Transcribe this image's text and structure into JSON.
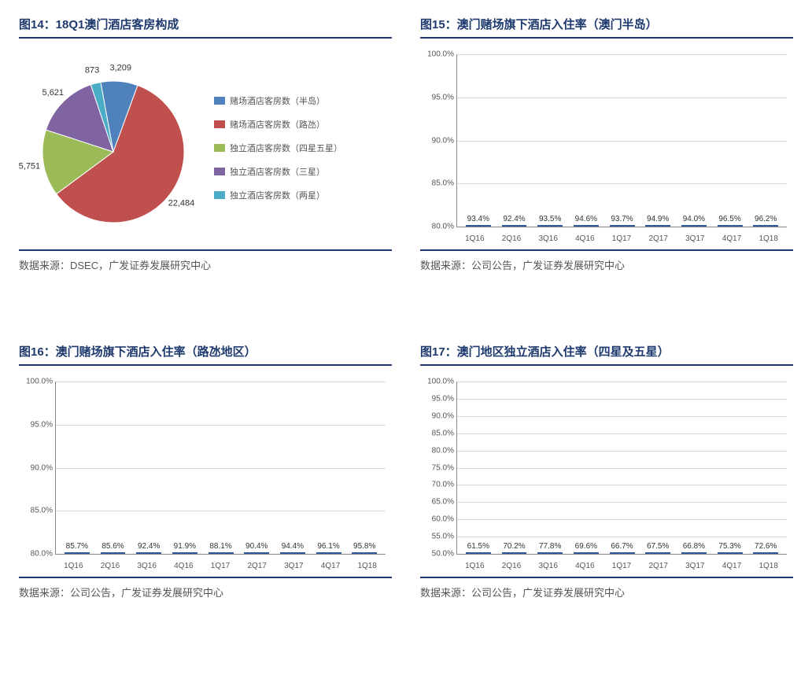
{
  "panels": [
    {
      "title": "图14：18Q1澳门酒店客房构成",
      "source": "数据来源：DSEC，广发证券发展研究中心",
      "chart": {
        "type": "pie",
        "slices": [
          {
            "label": "赌场酒店客房数（半岛）",
            "value": 3209,
            "color": "#4f81bd",
            "text": "3,209"
          },
          {
            "label": "赌场酒店客房数（路氹）",
            "value": 22484,
            "color": "#c0504d",
            "text": "22,484"
          },
          {
            "label": "独立酒店客房数（四星五星）",
            "value": 5751,
            "color": "#9bbb59",
            "text": "5,751"
          },
          {
            "label": "独立酒店客房数（三星）",
            "value": 5621,
            "color": "#8064a2",
            "text": "5,621"
          },
          {
            "label": "独立酒店客房数（两星）",
            "value": 873,
            "color": "#4bacc6",
            "text": "873"
          }
        ],
        "border_color": "#ffffff"
      }
    },
    {
      "title": "图15：澳门赌场旗下酒店入住率（澳门半岛）",
      "source": "数据来源：公司公告，广发证券发展研究中心",
      "chart": {
        "type": "bar",
        "categories": [
          "1Q16",
          "2Q16",
          "3Q16",
          "4Q16",
          "1Q17",
          "2Q17",
          "3Q17",
          "4Q17",
          "1Q18"
        ],
        "values": [
          93.4,
          92.4,
          93.5,
          94.6,
          93.7,
          94.9,
          94.0,
          96.5,
          96.2
        ],
        "value_suffix": "%",
        "bar_color": "#4f7fbf",
        "bar_border": "#2f5a99",
        "grid_color": "#d9d9d9",
        "ylim": [
          80,
          100
        ],
        "ytick_step": 5
      }
    },
    {
      "title": "图16：澳门赌场旗下酒店入住率（路氹地区）",
      "source": "数据来源：公司公告，广发证券发展研究中心",
      "chart": {
        "type": "bar",
        "categories": [
          "1Q16",
          "2Q16",
          "3Q16",
          "4Q16",
          "1Q17",
          "2Q17",
          "3Q17",
          "4Q17",
          "1Q18"
        ],
        "values": [
          85.7,
          85.6,
          92.4,
          91.9,
          88.1,
          90.4,
          94.4,
          96.1,
          95.8
        ],
        "value_suffix": "%",
        "bar_color": "#4f7fbf",
        "bar_border": "#2f5a99",
        "grid_color": "#d9d9d9",
        "ylim": [
          80,
          100
        ],
        "ytick_step": 5
      }
    },
    {
      "title": "图17：澳门地区独立酒店入住率（四星及五星）",
      "source": "数据来源：公司公告，广发证券发展研究中心",
      "chart": {
        "type": "bar",
        "categories": [
          "1Q16",
          "2Q16",
          "3Q16",
          "4Q16",
          "1Q17",
          "2Q17",
          "3Q17",
          "4Q17",
          "1Q18"
        ],
        "values": [
          61.5,
          70.2,
          77.8,
          69.6,
          66.7,
          67.5,
          66.8,
          75.3,
          72.6
        ],
        "value_suffix": "%",
        "bar_color": "#4f7fbf",
        "bar_border": "#2f5a99",
        "grid_color": "#d9d9d9",
        "ylim": [
          50,
          100
        ],
        "ytick_step": 5
      }
    }
  ]
}
